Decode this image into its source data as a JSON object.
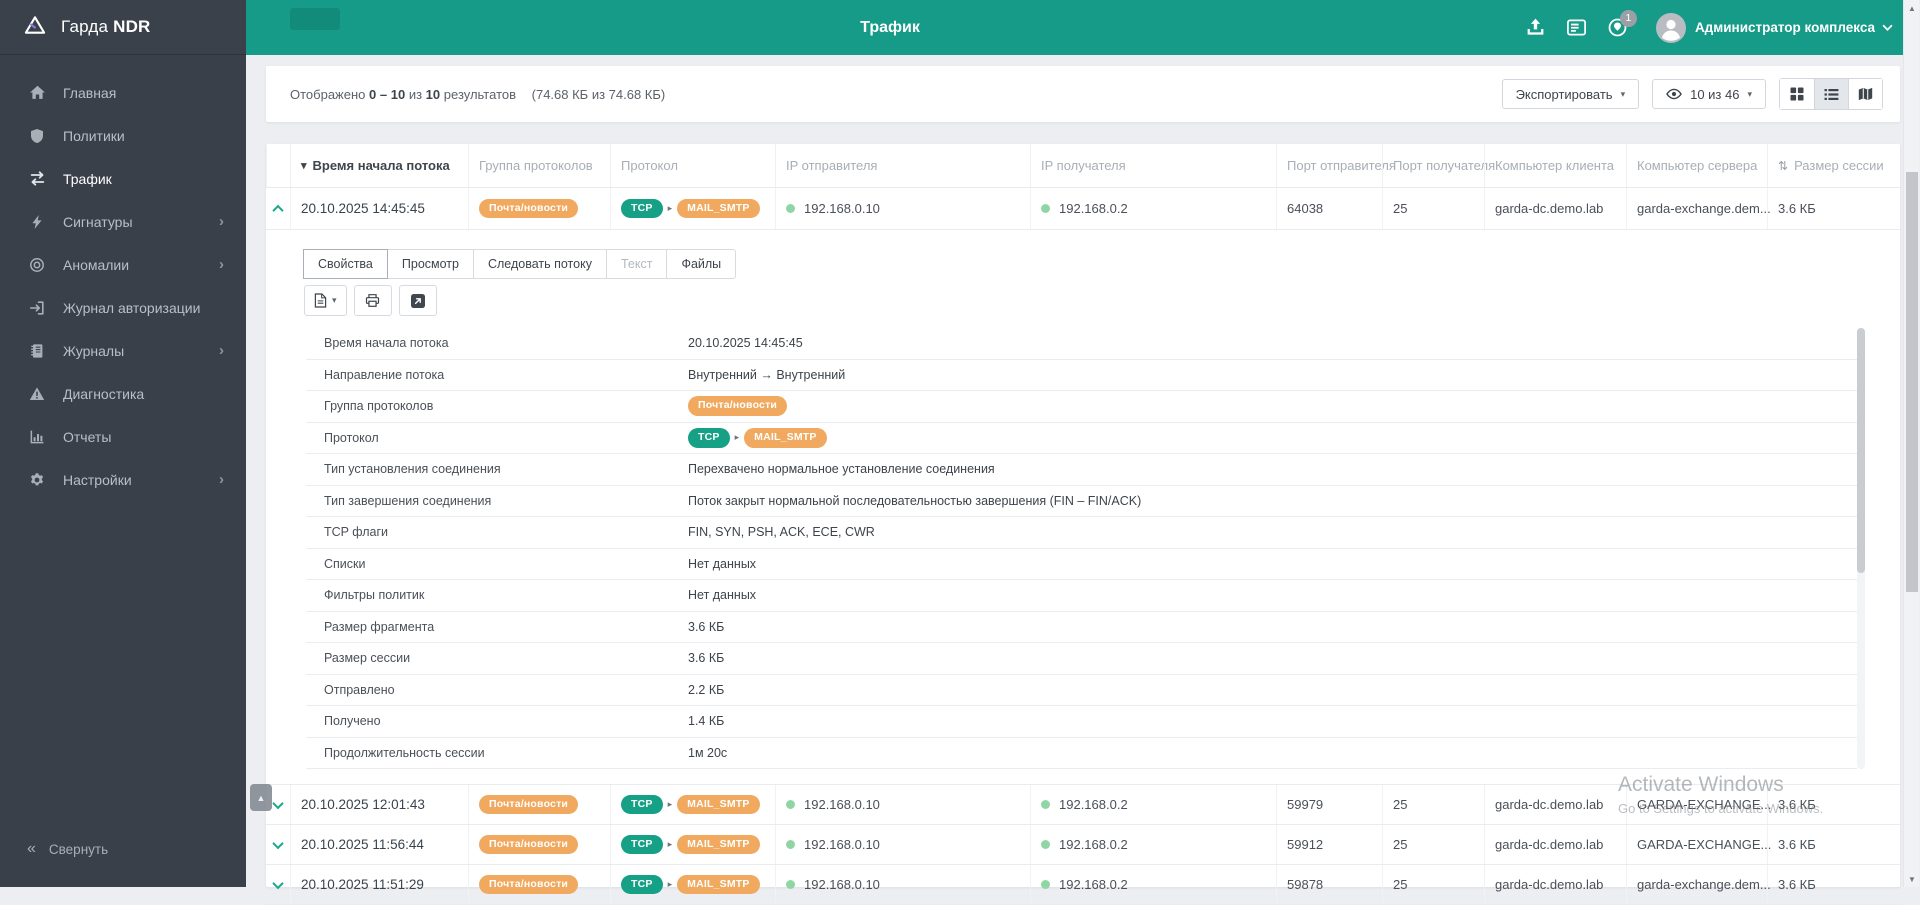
{
  "app": {
    "brand": "Гарда",
    "brand_bold": "NDR"
  },
  "header": {
    "title": "Трафик",
    "user_name": "Администратор комплекса",
    "notification_count": "1"
  },
  "sidebar": {
    "items": [
      {
        "label": "Главная",
        "icon": "home-icon"
      },
      {
        "label": "Политики",
        "icon": "shield-icon"
      },
      {
        "label": "Трафик",
        "icon": "traffic-icon",
        "active": true
      },
      {
        "label": "Сигнатуры",
        "icon": "bolt-icon",
        "submenu": true
      },
      {
        "label": "Аномалии",
        "icon": "target-icon",
        "submenu": true
      },
      {
        "label": "Журнал авторизации",
        "icon": "login-icon"
      },
      {
        "label": "Журналы",
        "icon": "journal-icon",
        "submenu": true
      },
      {
        "label": "Диагностика",
        "icon": "warning-icon"
      },
      {
        "label": "Отчеты",
        "icon": "report-icon"
      },
      {
        "label": "Настройки",
        "icon": "gear-icon",
        "submenu": true
      }
    ],
    "collapse_label": "Свернуть"
  },
  "toolbar": {
    "summary": {
      "prefix": "Отображено",
      "range": "0 – 10",
      "of_word": "из",
      "total": "10",
      "results_word": "результатов",
      "size_info": "(74.68 КБ из 74.68 КБ)"
    },
    "export_label": "Экспортировать",
    "page_size_label": "10 из 46"
  },
  "table": {
    "columns": [
      {
        "label": ""
      },
      {
        "label": "Время начала потока",
        "icon": "sort-desc-icon",
        "dark": true
      },
      {
        "label": "Группа протоколов"
      },
      {
        "label": "Протокол"
      },
      {
        "label": "IP отправителя"
      },
      {
        "label": "IP получателя"
      },
      {
        "label": "Порт отправителя"
      },
      {
        "label": "Порт получателя"
      },
      {
        "label": "Компьютер клиента"
      },
      {
        "label": "Компьютер сервера"
      },
      {
        "label": "Размер сессии",
        "icon": "sort-updown-icon"
      }
    ],
    "rows_top": [
      {
        "time": "20.10.2025 14:45:45",
        "group": "Почта/новости",
        "proto_transport": "TCP",
        "proto_app": "MAIL_SMTP",
        "src_ip": "192.168.0.10",
        "dst_ip": "192.168.0.2",
        "src_port": "64038",
        "dst_port": "25",
        "client_host": "garda-dc.demo.lab",
        "server_host": "garda-exchange.dem...",
        "session_size": "3.6 КБ",
        "expanded": true
      }
    ],
    "rows_bottom": [
      {
        "time": "20.10.2025 12:01:43",
        "group": "Почта/новости",
        "proto_transport": "TCP",
        "proto_app": "MAIL_SMTP",
        "src_ip": "192.168.0.10",
        "dst_ip": "192.168.0.2",
        "src_port": "59979",
        "dst_port": "25",
        "client_host": "garda-dc.demo.lab",
        "server_host": "GARDA-EXCHANGE...",
        "session_size": "3.6 КБ"
      },
      {
        "time": "20.10.2025 11:56:44",
        "group": "Почта/новости",
        "proto_transport": "TCP",
        "proto_app": "MAIL_SMTP",
        "src_ip": "192.168.0.10",
        "dst_ip": "192.168.0.2",
        "src_port": "59912",
        "dst_port": "25",
        "client_host": "garda-dc.demo.lab",
        "server_host": "GARDA-EXCHANGE...",
        "session_size": "3.6 КБ"
      },
      {
        "time": "20.10.2025 11:51:29",
        "group": "Почта/новости",
        "proto_transport": "TCP",
        "proto_app": "MAIL_SMTP",
        "src_ip": "192.168.0.10",
        "dst_ip": "192.168.0.2",
        "src_port": "59878",
        "dst_port": "25",
        "client_host": "garda-dc.demo.lab",
        "server_host": "garda-exchange.dem...",
        "session_size": "3.6 КБ"
      }
    ]
  },
  "detail": {
    "tabs": [
      {
        "label": "Свойства",
        "active": true
      },
      {
        "label": "Просмотр"
      },
      {
        "label": "Следовать потоку"
      },
      {
        "label": "Текст",
        "disabled": true
      },
      {
        "label": "Файлы"
      }
    ],
    "toolbar_icons": [
      "file-export-icon",
      "print-icon",
      "open-in-window-icon"
    ],
    "properties": [
      {
        "label": "Время начала потока",
        "type": "text",
        "value": "20.10.2025 14:45:45"
      },
      {
        "label": "Направление потока",
        "type": "text",
        "value": "Внутренний → Внутренний"
      },
      {
        "label": "Группа протоколов",
        "type": "badge-orange",
        "value": "Почта/новости"
      },
      {
        "label": "Протокол",
        "type": "proto",
        "value": "TCP",
        "value2": "MAIL_SMTP"
      },
      {
        "label": "Тип установления соединения",
        "type": "text",
        "value": "Перехвачено нормальное установление соединения"
      },
      {
        "label": "Тип завершения соединения",
        "type": "text",
        "value": "Поток закрыт нормальной последовательностью завершения (FIN – FIN/ACK)"
      },
      {
        "label": "TCP флаги",
        "type": "text",
        "value": "FIN, SYN, PSH, ACK, ECE, CWR"
      },
      {
        "label": "Списки",
        "type": "text",
        "value": "Нет данных"
      },
      {
        "label": "Фильтры политик",
        "type": "text",
        "value": "Нет данных"
      },
      {
        "label": "Размер фрагмента",
        "type": "text",
        "value": "3.6 КБ"
      },
      {
        "label": "Размер сессии",
        "type": "text",
        "value": "3.6 КБ"
      },
      {
        "label": "Отправлено",
        "type": "text",
        "value": "2.2 КБ"
      },
      {
        "label": "Получено",
        "type": "text",
        "value": "1.4 КБ"
      },
      {
        "label": "Продолжительность сессии",
        "type": "text",
        "value": "1м 20с"
      }
    ]
  },
  "watermark": {
    "line1": "Activate Windows",
    "line2": "Go to Settings to activate Windows."
  },
  "icons": {
    "scroll_up": "▲",
    "scroll_down": "▼",
    "scroll_top": "▲",
    "caret_down": "▾",
    "collapse": "«"
  },
  "colors": {
    "accent_teal": "#169b88",
    "sidebar_bg": "#394049",
    "badge_orange": "#f0a95f",
    "badge_green": "#16a085",
    "ip_dot_green": "#8fd6a4"
  }
}
